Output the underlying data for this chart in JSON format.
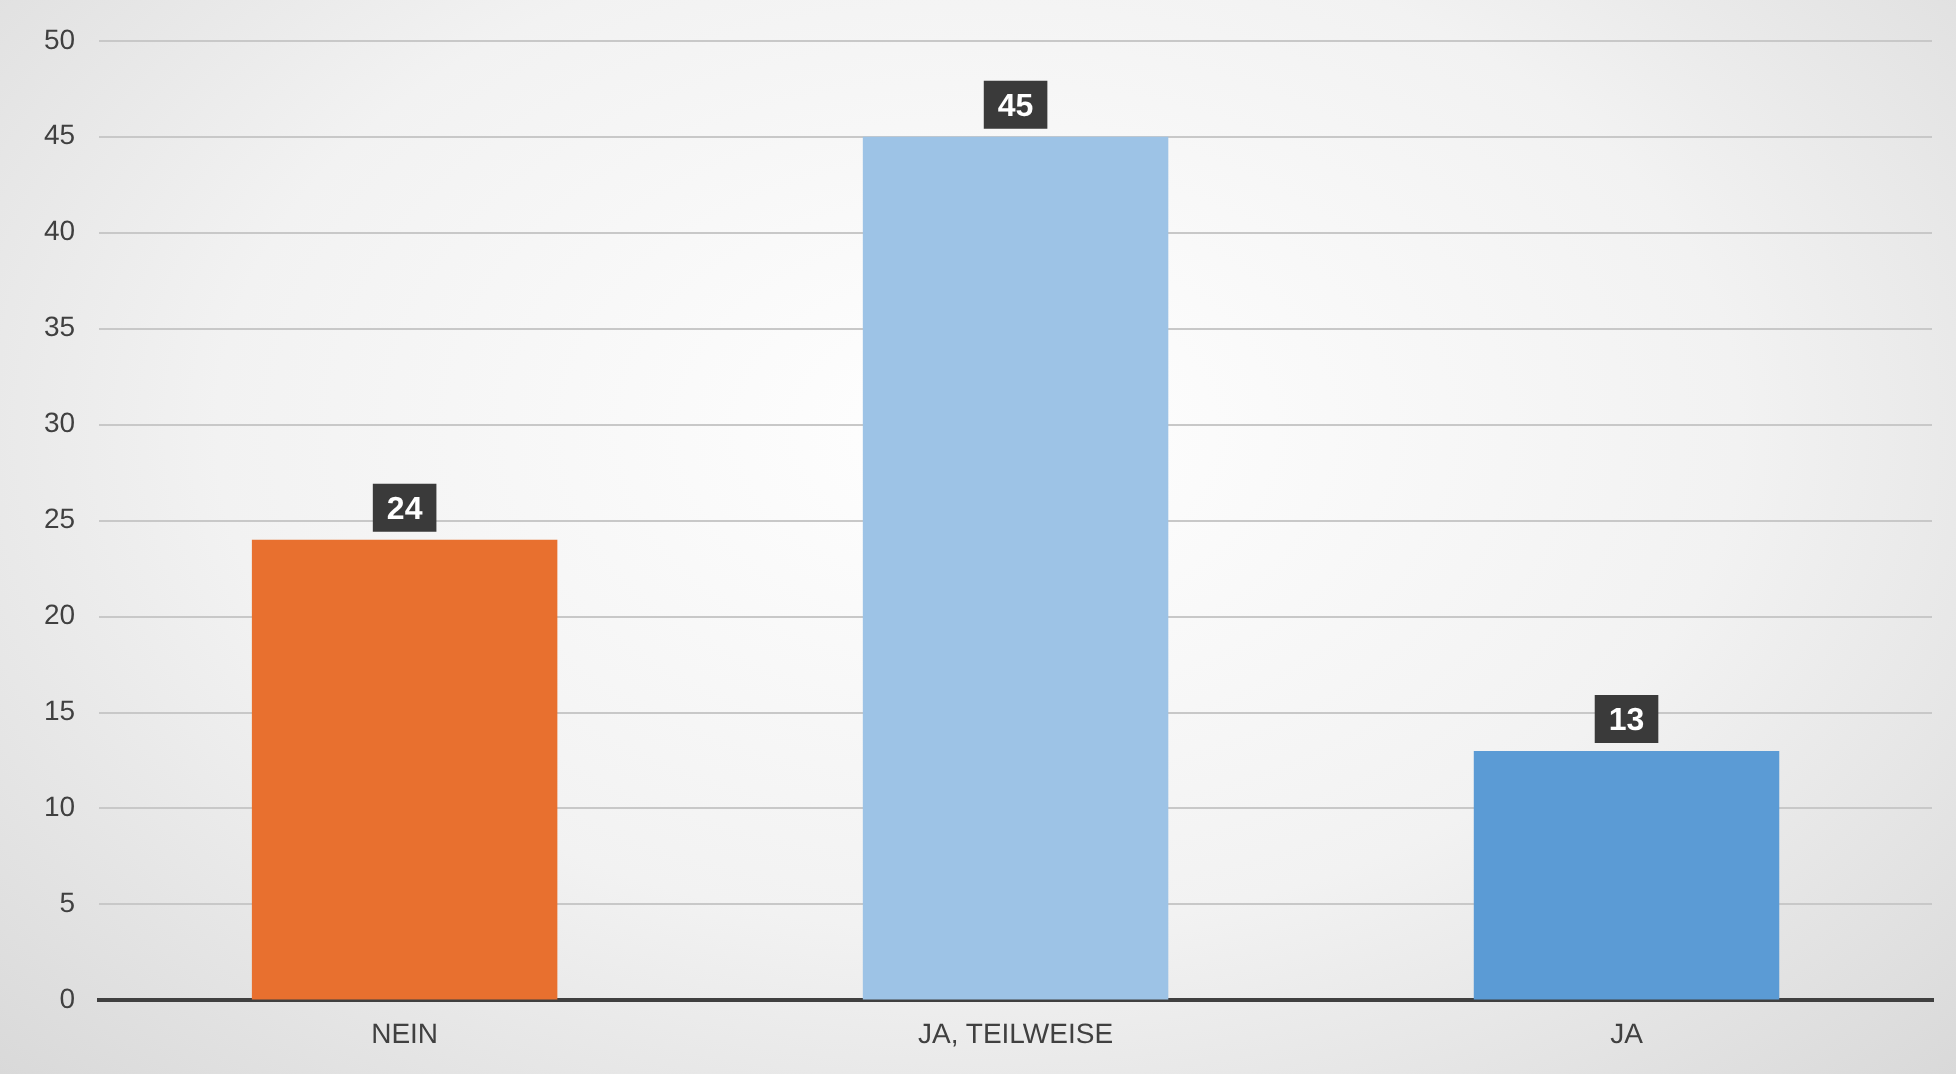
{
  "chart_data": {
    "type": "bar",
    "categories": [
      "NEIN",
      "JA, TEILWEISE",
      "JA"
    ],
    "values": [
      24,
      45,
      13
    ],
    "colors": [
      "#e8702f",
      "#9dc3e6",
      "#5b9bd5"
    ],
    "ylim": [
      0,
      50
    ],
    "yticks": [
      0,
      5,
      10,
      15,
      20,
      25,
      30,
      35,
      40,
      45,
      50
    ],
    "grid": "y",
    "data_labels": true
  }
}
